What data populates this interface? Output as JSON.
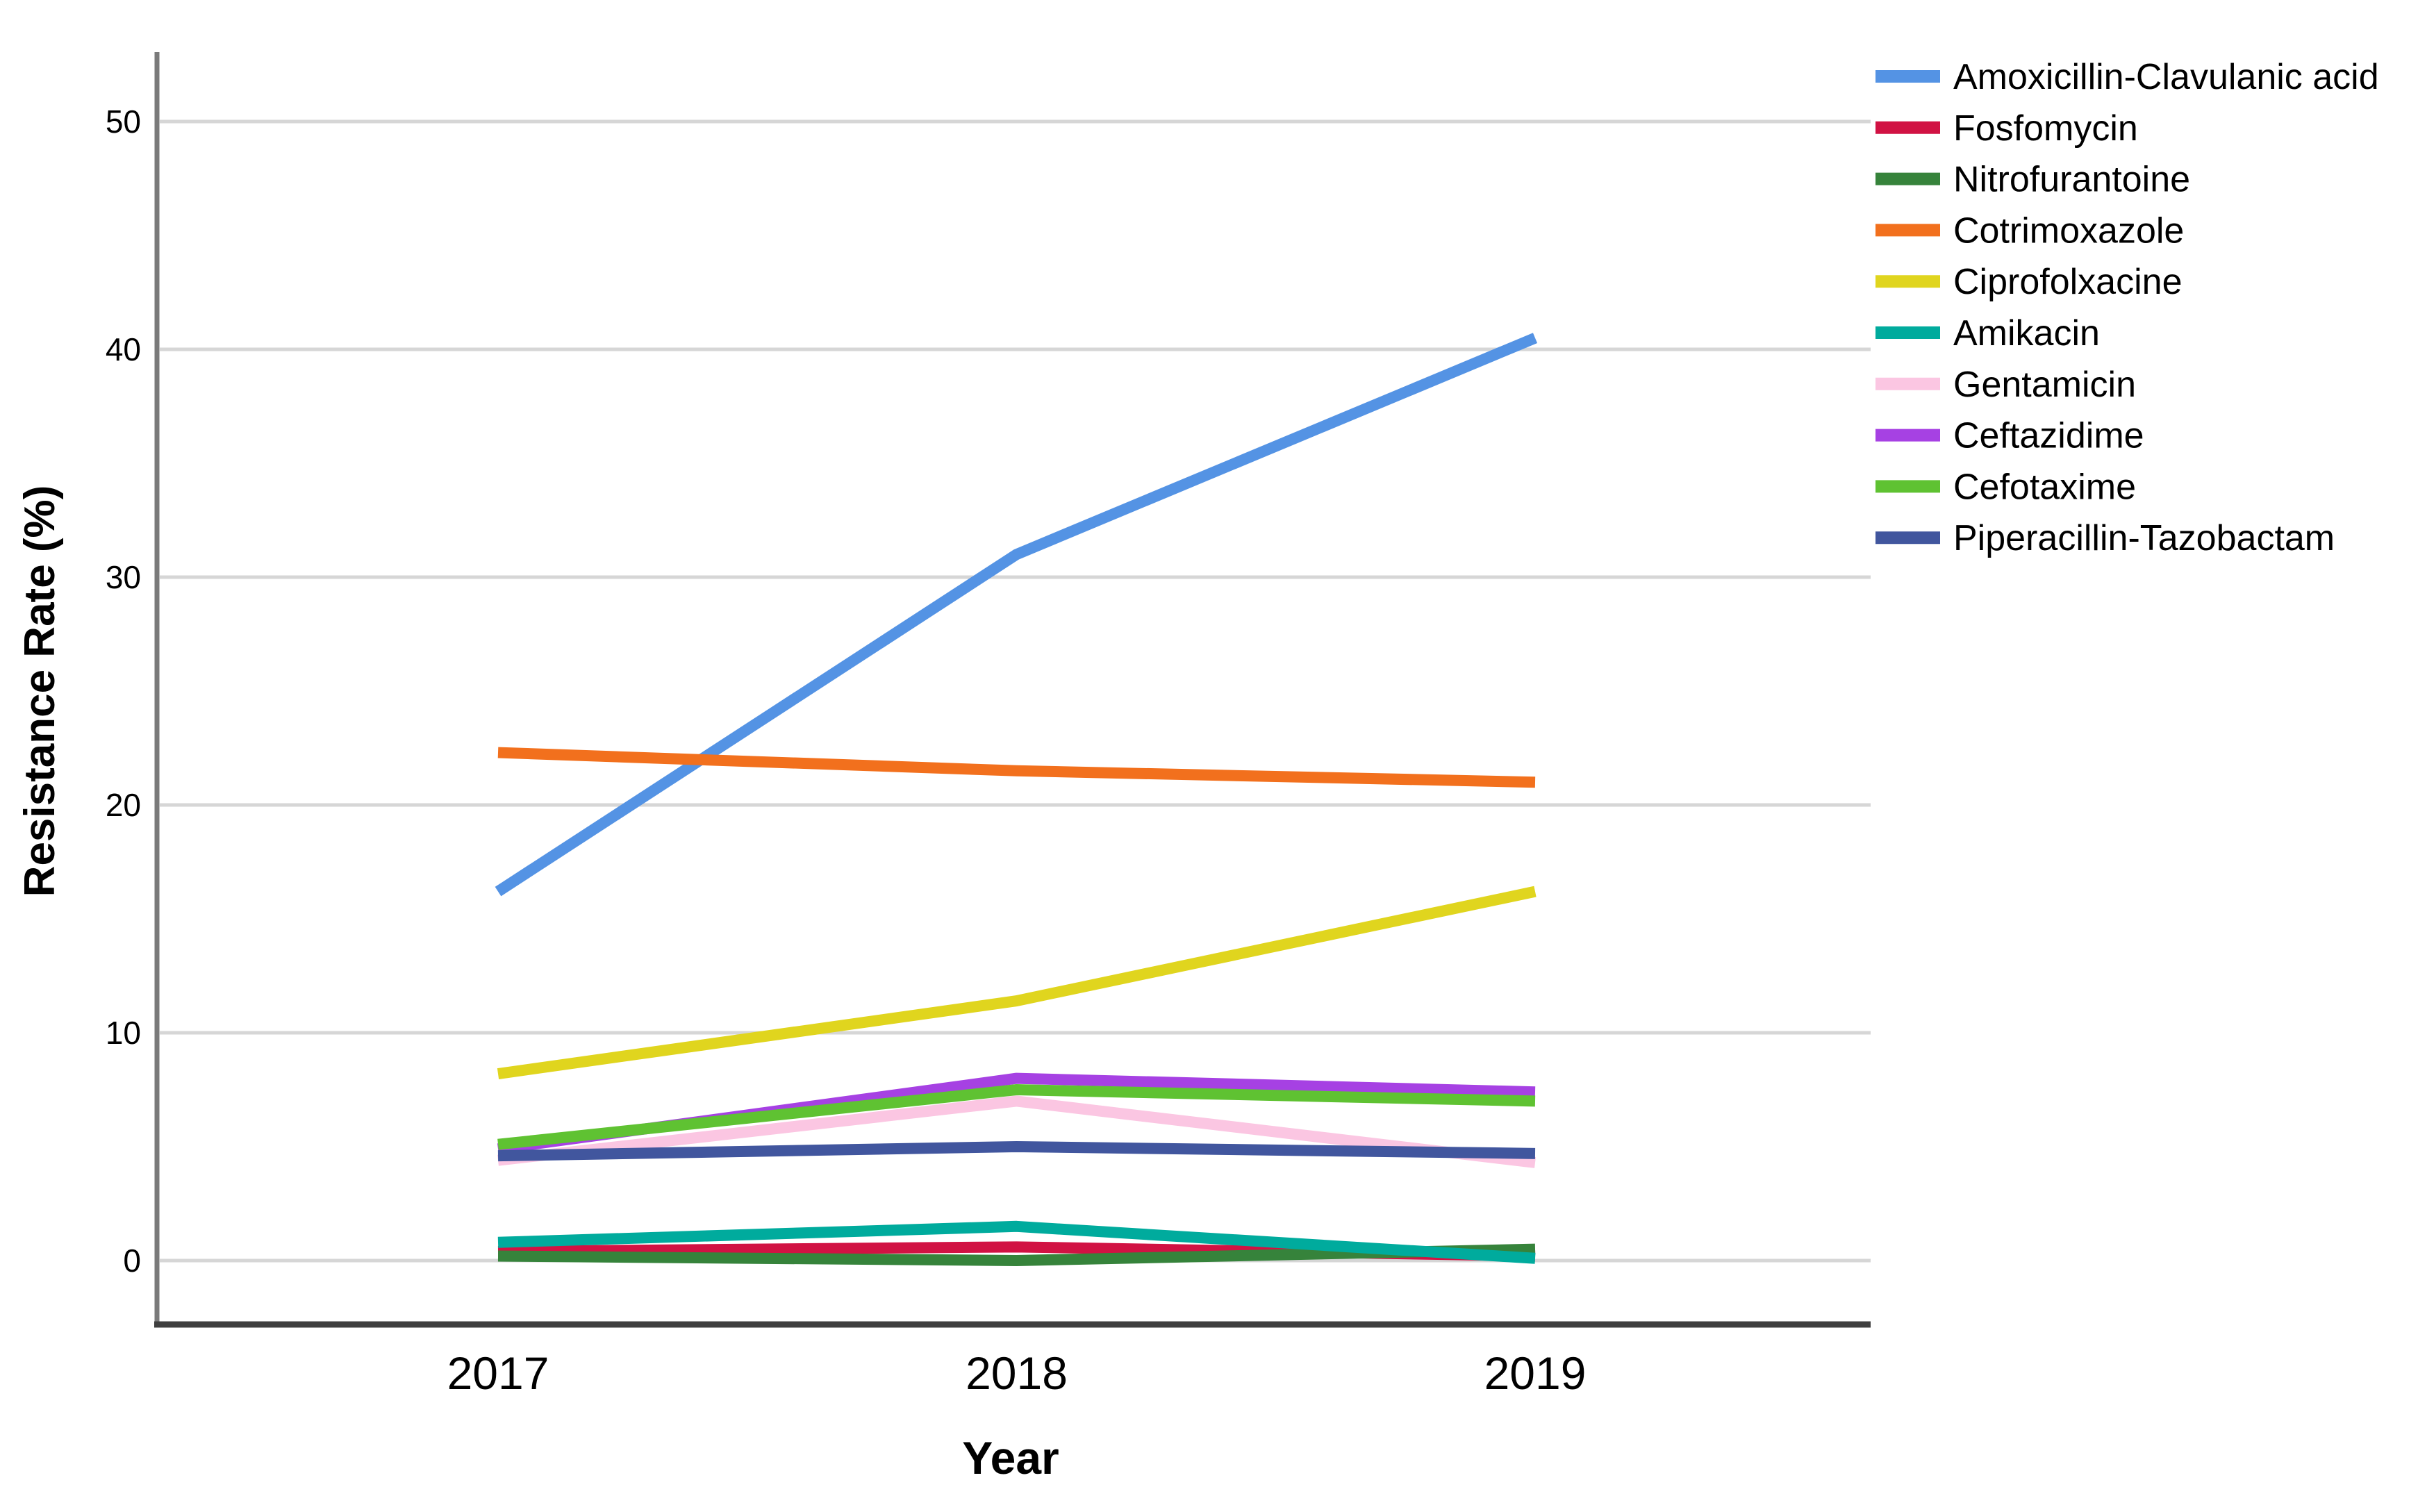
{
  "figure": {
    "background": "#ffffff"
  },
  "chart_data": {
    "type": "line",
    "title": "",
    "xlabel": "Year",
    "ylabel": "Resistance Rate (%)",
    "categories": [
      "2017",
      "2018",
      "2019"
    ],
    "y_ticks": [
      0,
      10,
      20,
      30,
      40,
      50
    ],
    "ylim": [
      0,
      50
    ],
    "grid": "horizontal",
    "legend_position": "right",
    "series": [
      {
        "name": "Amoxicillin-Clavulanic acid",
        "color": "#5493e4",
        "values": [
          16.2,
          31.0,
          40.5
        ]
      },
      {
        "name": "Fosfomycin",
        "color": "#d11243",
        "values": [
          0.4,
          0.6,
          0.2
        ]
      },
      {
        "name": "Nitrofurantoine",
        "color": "#36833b",
        "values": [
          0.2,
          0.0,
          0.5
        ]
      },
      {
        "name": "Cotrimoxazole",
        "color": "#f2701d",
        "values": [
          22.3,
          21.5,
          21.0
        ]
      },
      {
        "name": "Ciprofolxacine",
        "color": "#e0d51e",
        "values": [
          8.2,
          11.4,
          16.2
        ]
      },
      {
        "name": "Amikacin",
        "color": "#00ab9d",
        "values": [
          0.8,
          1.5,
          0.1
        ]
      },
      {
        "name": "Gentamicin",
        "color": "#fbc6e2",
        "values": [
          4.4,
          7.0,
          4.3
        ]
      },
      {
        "name": "Ceftazidime",
        "color": "#a641e3",
        "values": [
          4.9,
          8.0,
          7.4
        ]
      },
      {
        "name": "Cefotaxime",
        "color": "#5fc232",
        "values": [
          5.1,
          7.5,
          7.0
        ]
      },
      {
        "name": "Piperacillin-Tazobactam",
        "color": "#41569e",
        "values": [
          4.6,
          5.0,
          4.7
        ]
      }
    ]
  }
}
